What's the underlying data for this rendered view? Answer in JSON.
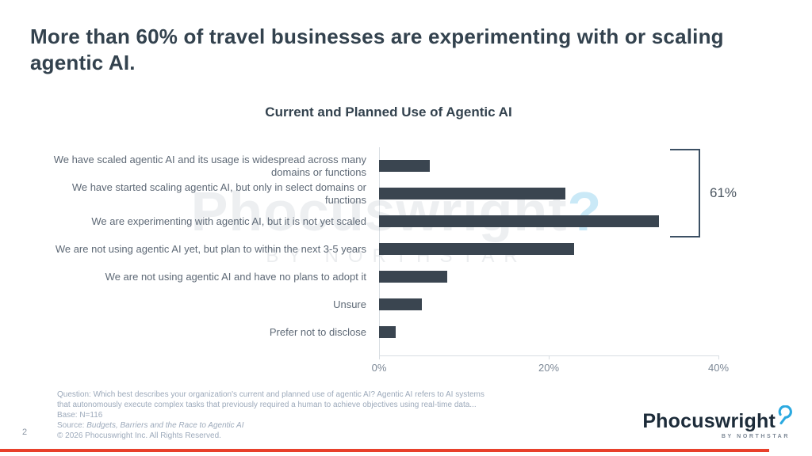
{
  "slide": {
    "title": "More than 60% of travel businesses are experimenting with or scaling agentic AI.",
    "page_number": "2",
    "accent_color": "#E8402B"
  },
  "chart_data": {
    "type": "bar",
    "orientation": "horizontal",
    "title": "Current and Planned Use of Agentic AI",
    "categories": [
      "We have scaled agentic AI and its usage is widespread across many domains or functions",
      "We have started scaling agentic AI, but only in select domains or functions",
      "We are experimenting with agentic AI, but it is not yet scaled",
      "We are not using agentic AI yet, but plan to within the next 3-5 years",
      "We are not using agentic AI and have no plans to adopt it",
      "Unsure",
      "Prefer not to disclose"
    ],
    "values": [
      6,
      22,
      33,
      23,
      8,
      5,
      2
    ],
    "unit": "%",
    "xlim": [
      0,
      40
    ],
    "x_ticks": [
      {
        "value": 0,
        "label": "0%"
      },
      {
        "value": 20,
        "label": "20%"
      },
      {
        "value": 40,
        "label": "40%"
      }
    ],
    "grid": false,
    "legend_position": "none",
    "bar_color": "#3A4550",
    "annotation": {
      "label": "61%",
      "from_category_index": 0,
      "to_category_index": 2
    }
  },
  "watermark": {
    "text": "Phocuswright",
    "mark": "?",
    "tagline": "BY NORTHSTAR"
  },
  "footnote": {
    "question_line1": "Question: Which best describes your organization's current and planned use of agentic AI? Agentic AI refers to AI systems",
    "question_line2": "that autonomously execute complex tasks that previously required a human to achieve objectives using real-time data...",
    "base": "Base: N=116",
    "source_prefix": "Source: ",
    "source_title": "Budgets, Barriers and the Race to Agentic AI",
    "copyright": "© 2026 Phocuswright Inc. All Rights Reserved."
  },
  "logo": {
    "brand": "Phocuswright",
    "tagline": "BY NORTHSTAR"
  }
}
